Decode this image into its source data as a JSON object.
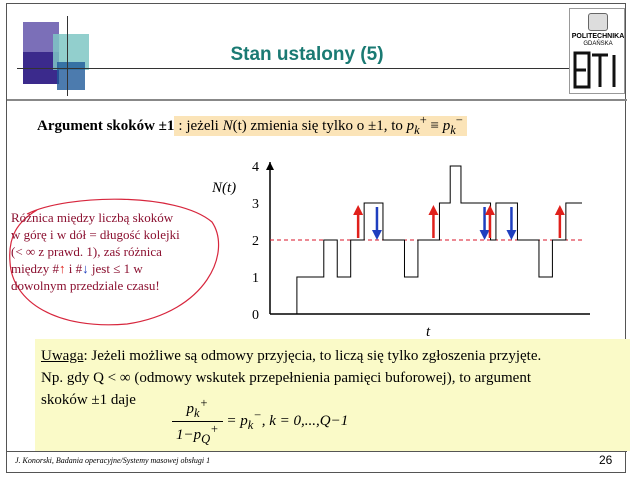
{
  "title": "Stan ustalony (5)",
  "logo": {
    "line1": "POLITECHNIKA",
    "line2": "GDAŃSKA",
    "letters": "ETI"
  },
  "argument": {
    "label": "Argument skoków ±1",
    "text_pre": ": jeżeli ",
    "N": "N",
    "t": "(t)",
    "text_mid": " zmienia się tylko o ±1, to ",
    "pk_plus": "p",
    "pk_sub": "k",
    "pk_sup": "+",
    "equiv": " ≡ ",
    "pk_minus_sup": "−"
  },
  "red_note": {
    "line1": "Różnica między liczbą skoków",
    "line2": "w górę i w dół = długość kolejki",
    "line3": "(< ∞ z prawd. 1), zaś różnica",
    "line4a": "między #",
    "line4b": " i #",
    "line4c": " jest ≤ 1 w",
    "line5": "dowolnym przedziale czasu!"
  },
  "chart_data": {
    "type": "line",
    "ylabel": "N(t)",
    "xlabel": "t",
    "yticks": [
      "0",
      "1",
      "2",
      "3",
      "4"
    ],
    "ylim": [
      0,
      4
    ],
    "reference_line_y": 2,
    "steps": [
      {
        "t": 0,
        "n": 0
      },
      {
        "t": 1,
        "n": 1
      },
      {
        "t": 2,
        "n": 2
      },
      {
        "t": 2.5,
        "n": 1
      },
      {
        "t": 3,
        "n": 2
      },
      {
        "t": 3.5,
        "n": 3
      },
      {
        "t": 4.2,
        "n": 2
      },
      {
        "t": 5,
        "n": 1
      },
      {
        "t": 5.5,
        "n": 2
      },
      {
        "t": 6.3,
        "n": 3
      },
      {
        "t": 6.7,
        "n": 4
      },
      {
        "t": 7.1,
        "n": 3
      },
      {
        "t": 8.2,
        "n": 2
      },
      {
        "t": 8.4,
        "n": 3
      },
      {
        "t": 9.2,
        "n": 2
      },
      {
        "t": 10,
        "n": 1
      },
      {
        "t": 10.5,
        "n": 2
      },
      {
        "t": 11,
        "n": 3
      },
      {
        "t": 11.4,
        "n": 3
      }
    ],
    "arrows": [
      {
        "t": 3.5,
        "dir": "up"
      },
      {
        "t": 4.2,
        "dir": "down"
      },
      {
        "t": 6.3,
        "dir": "up"
      },
      {
        "t": 8.2,
        "dir": "down"
      },
      {
        "t": 8.4,
        "dir": "up"
      },
      {
        "t": 9.2,
        "dir": "down"
      },
      {
        "t": 11,
        "dir": "up"
      }
    ],
    "tmax": 11.6,
    "colors": {
      "up": "#e0201b",
      "down": "#1f3fbf",
      "ref": "#d9142a"
    }
  },
  "uwaga": {
    "label": "Uwaga",
    "text1": ": Jeżeli możliwe są odmowy przyjęcia, to liczą się tylko zgłoszenia przyjęte.",
    "text2": "Np. gdy Q < ∞ (odmowy wskutek przepełnienia pamięci buforowej), to argument",
    "text3": "skoków ±1 daje"
  },
  "formula": {
    "num": "p",
    "num_sub": "k",
    "num_sup": "+",
    "den_pre": "1−",
    "den_p": "p",
    "den_sub": "Q",
    "den_sup": "+",
    "rhs": " = p",
    "rhs_sub": "k",
    "rhs_sup": "−",
    "rest": ",  k = 0,...,Q−1"
  },
  "footer": "J. Konorski, Badania operacyjne/Systemy masowej obsługi 1",
  "page": "26"
}
